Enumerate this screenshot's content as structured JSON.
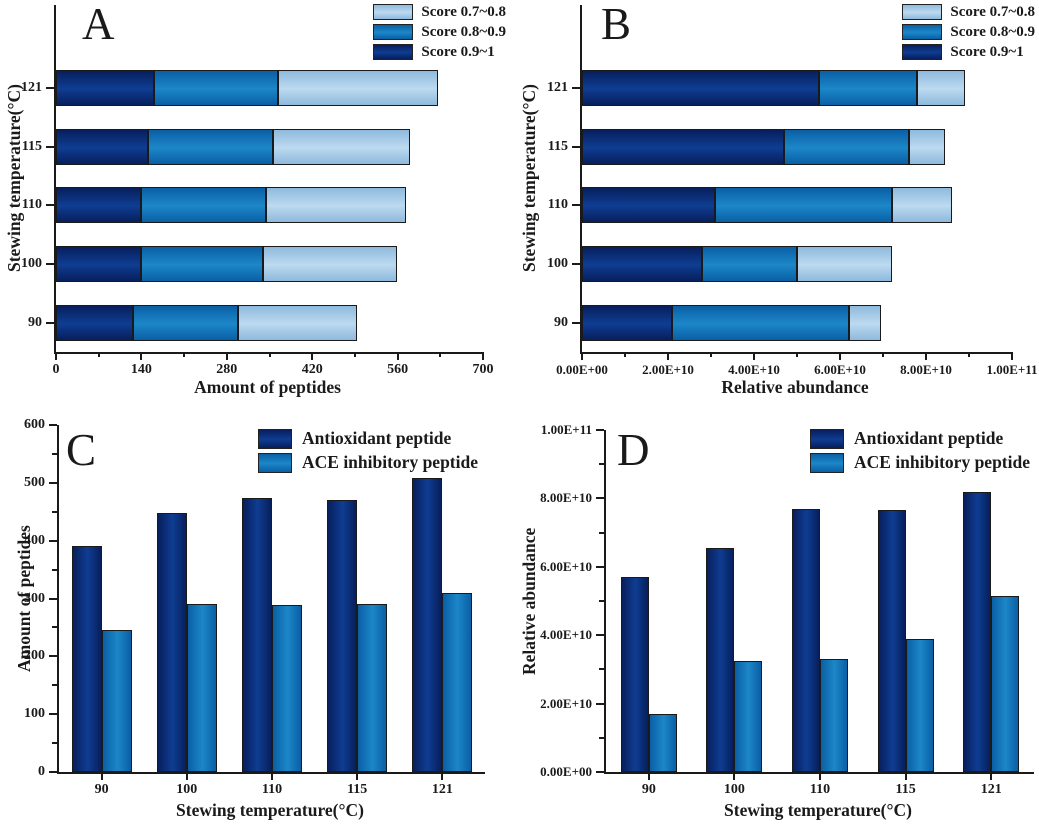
{
  "colors": {
    "dark": {
      "edge": "#071f5c",
      "mid": "#0f3d92"
    },
    "medium": {
      "edge": "#0a5fa5",
      "mid": "#1c87c8"
    },
    "light": {
      "edge": "#8fb9dc",
      "mid": "#bcdaf0"
    },
    "axis": "#1a1a1a",
    "bar_border": "#1a1a1a",
    "text": "#1a1a1a"
  },
  "chart_data": [
    {
      "id": "A",
      "panel_label": "A",
      "type": "bar",
      "orientation": "horizontal",
      "stacked": true,
      "grid": false,
      "legend_position": "upper-right",
      "xlabel": "Amount of peptides",
      "ylabel": "Stewing temperature(°C)",
      "categories": [
        "90",
        "100",
        "110",
        "115",
        "121"
      ],
      "xlim": [
        0,
        700
      ],
      "x_tick_labels": [
        "0",
        "140",
        "280",
        "420",
        "560",
        "700"
      ],
      "legend": [
        "Score 0.7~0.8",
        "Score 0.8~0.9",
        "Score 0.9~1"
      ],
      "series": [
        {
          "name": "Score 0.9~1",
          "color_key": "dark",
          "values": [
            127,
            140,
            139,
            150,
            160
          ]
        },
        {
          "name": "Score 0.8~0.9",
          "color_key": "medium",
          "values": [
            172,
            200,
            205,
            206,
            204
          ]
        },
        {
          "name": "Score 0.7~0.8",
          "color_key": "light",
          "values": [
            195,
            219,
            230,
            225,
            263
          ]
        }
      ]
    },
    {
      "id": "B",
      "panel_label": "B",
      "type": "bar",
      "orientation": "horizontal",
      "stacked": true,
      "grid": false,
      "legend_position": "upper-right",
      "xlabel": "Relative abundance",
      "ylabel": "Stewing temperature(°C)",
      "categories": [
        "90",
        "100",
        "110",
        "115",
        "121"
      ],
      "xlim": [
        0,
        100000000000.0
      ],
      "x_tick_labels": [
        "0.00E+00",
        "2.00E+10",
        "4.00E+10",
        "6.00E+10",
        "8.00E+10",
        "1.00E+11"
      ],
      "legend": [
        "Score 0.7~0.8",
        "Score 0.8~0.9",
        "Score 0.9~1"
      ],
      "series": [
        {
          "name": "Score 0.9~1",
          "color_key": "dark",
          "values": [
            21000000000.0,
            28000000000.0,
            31000000000.0,
            47000000000.0,
            55000000000.0
          ]
        },
        {
          "name": "Score 0.8~0.9",
          "color_key": "medium",
          "values": [
            41000000000.0,
            22000000000.0,
            41000000000.0,
            29000000000.0,
            23000000000.0
          ]
        },
        {
          "name": "Score 0.7~0.8",
          "color_key": "light",
          "values": [
            7500000000.0,
            22000000000.0,
            14000000000.0,
            8500000000.0,
            11000000000.0
          ]
        }
      ]
    },
    {
      "id": "C",
      "panel_label": "C",
      "type": "bar",
      "orientation": "vertical",
      "stacked": false,
      "grid": false,
      "legend_position": "upper-right",
      "xlabel": "Stewing temperature(°C)",
      "ylabel": "Amount of peptides",
      "categories": [
        "90",
        "100",
        "110",
        "115",
        "121"
      ],
      "ylim": [
        0,
        600
      ],
      "y_tick_labels": [
        "0",
        "100",
        "200",
        "300",
        "400",
        "500",
        "600"
      ],
      "legend": [
        "Antioxidant peptide",
        "ACE inhibitory peptide"
      ],
      "series": [
        {
          "name": "Antioxidant peptide",
          "color_key": "dark",
          "values": [
            391,
            447,
            473,
            471,
            509
          ]
        },
        {
          "name": "ACE inhibitory peptide",
          "color_key": "medium",
          "values": [
            245,
            291,
            289,
            291,
            309
          ]
        }
      ]
    },
    {
      "id": "D",
      "panel_label": "D",
      "type": "bar",
      "orientation": "vertical",
      "stacked": false,
      "grid": false,
      "legend_position": "upper-right",
      "xlabel": "Stewing temperature(°C)",
      "ylabel": "Relative abundance",
      "categories": [
        "90",
        "100",
        "110",
        "115",
        "121"
      ],
      "ylim": [
        0,
        100000000000.0
      ],
      "y_tick_labels": [
        "0.00E+00",
        "2.00E+10",
        "4.00E+10",
        "6.00E+10",
        "8.00E+10",
        "1.00E+11"
      ],
      "legend": [
        "Antioxidant peptide",
        "ACE inhibitory peptide"
      ],
      "series": [
        {
          "name": "Antioxidant peptide",
          "color_key": "dark",
          "values": [
            57000000000.0,
            65500000000.0,
            77000000000.0,
            76500000000.0,
            82000000000.0
          ]
        },
        {
          "name": "ACE inhibitory peptide",
          "color_key": "medium",
          "values": [
            17000000000.0,
            32500000000.0,
            33000000000.0,
            39000000000.0,
            51500000000.0
          ]
        }
      ]
    }
  ]
}
